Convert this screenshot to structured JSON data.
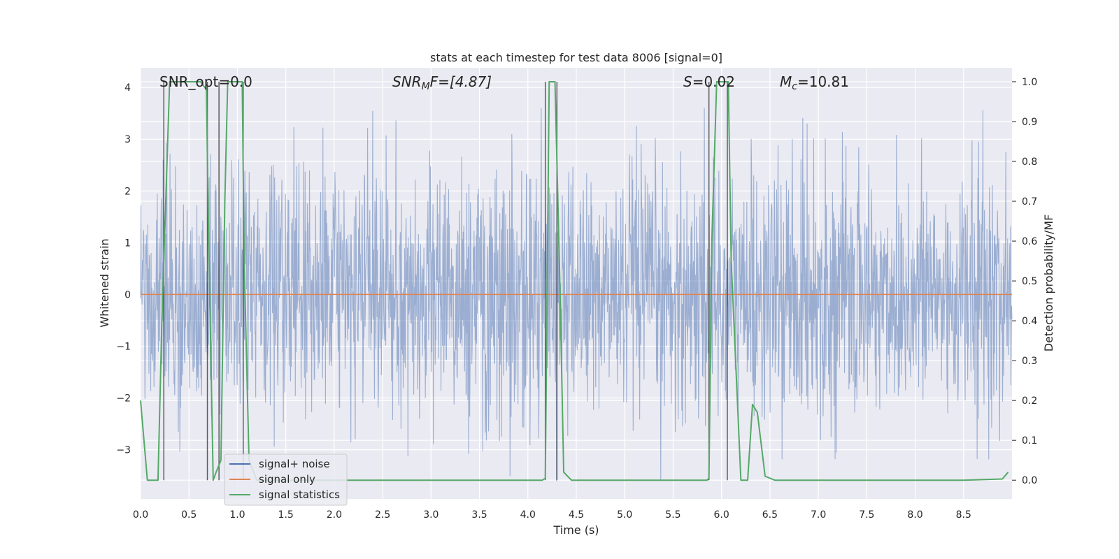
{
  "chart_data": {
    "type": "line",
    "title": "stats at each timestep for test data 8006 [signal=0]",
    "xlabel": "Time (s)",
    "ylabel_left": "Whitened strain",
    "ylabel_right": "Detection probability/MF",
    "xlim": [
      0,
      9.0
    ],
    "ylim_left": [
      -3.95,
      4.38
    ],
    "ylim_right": [
      -0.047,
      1.035
    ],
    "x_ticks": [
      0.0,
      0.5,
      1.0,
      1.5,
      2.0,
      2.5,
      3.0,
      3.5,
      4.0,
      4.5,
      5.0,
      5.5,
      6.0,
      6.5,
      7.0,
      7.5,
      8.0,
      8.5
    ],
    "x_tick_labels": [
      "0.0",
      "0.5",
      "1.0",
      "1.5",
      "2.0",
      "2.5",
      "3.0",
      "3.5",
      "4.0",
      "4.5",
      "5.0",
      "5.5",
      "6.0",
      "6.5",
      "7.0",
      "7.5",
      "8.0",
      "8.5"
    ],
    "y_left_ticks": [
      -3,
      -2,
      -1,
      0,
      1,
      2,
      3,
      4
    ],
    "y_left_tick_labels": [
      "−3",
      "−2",
      "−1",
      "0",
      "1",
      "2",
      "3",
      "4"
    ],
    "y_right_ticks": [
      0.0,
      0.1,
      0.2,
      0.3,
      0.4,
      0.5,
      0.6,
      0.7,
      0.8,
      0.9,
      1.0
    ],
    "y_right_tick_labels": [
      "0.0",
      "0.1",
      "0.2",
      "0.3",
      "0.4",
      "0.5",
      "0.6",
      "0.7",
      "0.8",
      "0.9",
      "1.0"
    ],
    "grid": true,
    "legend_position": "lower-left",
    "annotations": {
      "snr_opt": "SNR_opt=0.0",
      "snr_mf_main": "SNR",
      "snr_mf_sub": "M",
      "snr_mf_rest": "F=[4.87]",
      "s_main": "S",
      "s_rest": "=0.02",
      "mc_main": "M",
      "mc_sub": "c",
      "mc_rest": "=10.81"
    },
    "series": [
      {
        "name": "signal+ noise",
        "axis": "left",
        "color": "#4c72b0",
        "description_values": {
          "approx_min": -3.6,
          "approx_max": 3.6,
          "kind": "whitened gaussian noise"
        }
      },
      {
        "name": "signal only",
        "axis": "left",
        "color": "#dd8452",
        "x": [
          0.0,
          9.0
        ],
        "y": [
          0.0,
          0.0
        ]
      },
      {
        "name": "signal statistics",
        "axis": "right",
        "color": "#55a868",
        "x": [
          0.0,
          0.07,
          0.18,
          0.22,
          0.3,
          0.38,
          0.5,
          0.62,
          0.68,
          0.7,
          0.75,
          0.78,
          0.83,
          0.87,
          0.9,
          1.05,
          1.07,
          1.12,
          1.2,
          1.5,
          2.0,
          2.5,
          3.0,
          3.5,
          4.0,
          4.15,
          4.18,
          4.22,
          4.28,
          4.33,
          4.37,
          4.45,
          4.6,
          5.0,
          5.5,
          5.85,
          5.87,
          5.9,
          5.95,
          6.07,
          6.1,
          6.2,
          6.27,
          6.32,
          6.37,
          6.45,
          6.55,
          7.0,
          7.5,
          8.0,
          8.5,
          8.9,
          8.96
        ],
        "y": [
          0.2,
          0.0,
          0.0,
          0.4,
          1.0,
          1.0,
          1.0,
          1.0,
          0.98,
          0.65,
          0.0,
          0.02,
          0.05,
          0.7,
          1.0,
          1.0,
          0.55,
          0.05,
          0.0,
          0.0,
          0.0,
          0.0,
          0.0,
          0.0,
          0.0,
          0.0,
          0.005,
          1.0,
          1.0,
          0.5,
          0.02,
          0.0,
          0.0,
          0.0,
          0.0,
          0.0,
          0.005,
          0.6,
          1.0,
          1.0,
          0.55,
          0.0,
          0.0,
          0.19,
          0.17,
          0.01,
          0.0,
          0.0,
          0.0,
          0.0,
          0.0,
          0.003,
          0.02
        ]
      }
    ],
    "vertical_markers": {
      "color": "#3a3a3a",
      "x": [
        0.24,
        0.69,
        0.81,
        1.06,
        4.18,
        4.3,
        5.87,
        6.06
      ]
    },
    "colors": {
      "background": "#eaeaf2",
      "grid": "#ffffff"
    }
  }
}
